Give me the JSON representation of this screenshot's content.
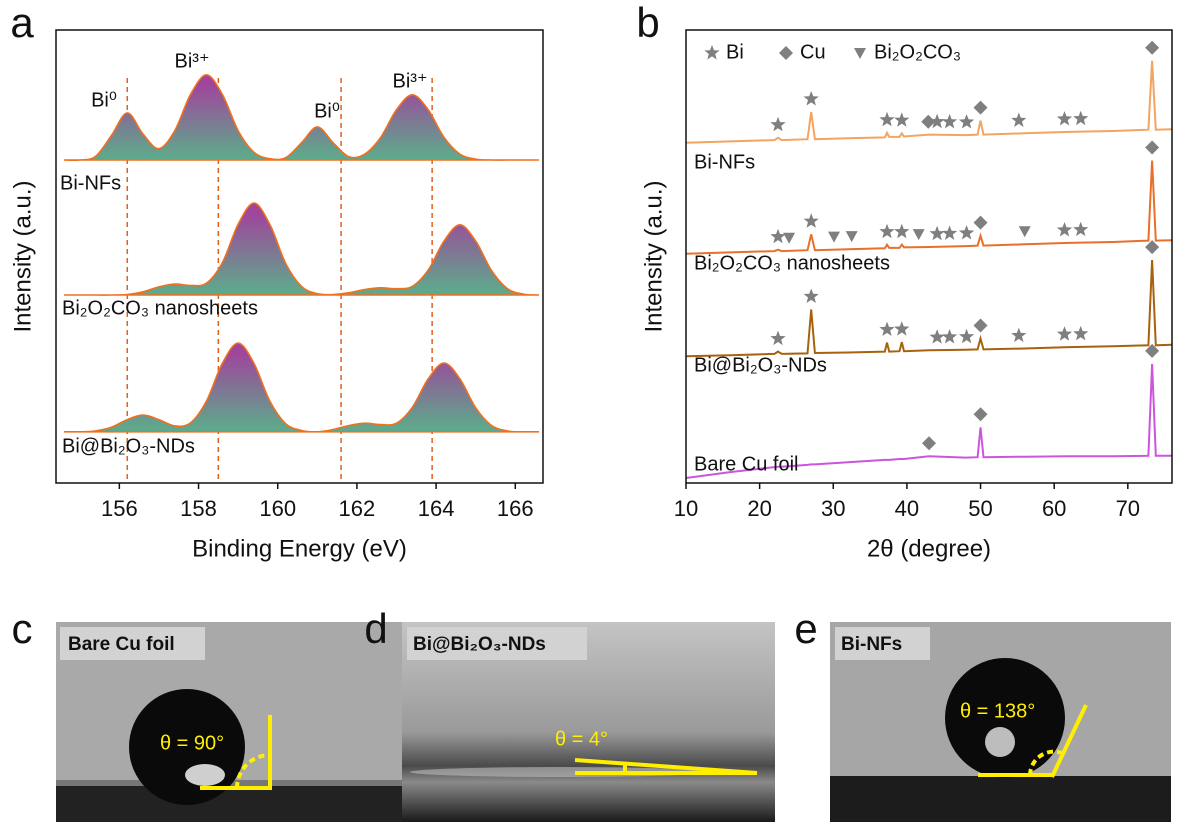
{
  "chart_data": [
    {
      "type": "area",
      "panel": "a",
      "x_label": "Binding Energy (eV)",
      "y_label": "Intensity (a.u.)",
      "xlim": [
        154.4,
        166.7
      ],
      "xticks": [
        156,
        158,
        160,
        162,
        164,
        166
      ],
      "ylim": [
        0,
        100
      ],
      "line_color": "#f0701e",
      "reference_line_color": "#e0601a",
      "reference_lines": [
        156.2,
        158.5,
        161.6,
        163.9
      ],
      "annotations": [
        "Bi⁰",
        "Bi³⁺",
        "Bi⁰",
        "Bi³⁺"
      ],
      "x": [
        154.6,
        155.0,
        155.4,
        155.8,
        156.2,
        156.6,
        157.0,
        157.4,
        157.8,
        158.2,
        158.6,
        159.0,
        159.4,
        159.8,
        160.2,
        160.6,
        161.0,
        161.4,
        161.8,
        162.2,
        162.6,
        163.0,
        163.4,
        163.8,
        164.2,
        164.6,
        165.0,
        165.4,
        165.8,
        166.2,
        166.6
      ],
      "series": [
        {
          "name": "Bi-NFs",
          "color": "#a0449c",
          "values": [
            71.3,
            71.3,
            72.1,
            76.7,
            81.7,
            77.0,
            73.8,
            77.8,
            85.8,
            90.1,
            85.8,
            77.8,
            73.0,
            71.6,
            71.8,
            75.1,
            78.6,
            75.1,
            72.0,
            72.6,
            76.3,
            82.4,
            85.7,
            82.4,
            76.3,
            72.6,
            71.5,
            71.3,
            71.3,
            71.3,
            71.3
          ]
        },
        {
          "name": "Bi₂O₂CO₃ nanosheets",
          "color": "#a0449c",
          "values": [
            41.5,
            41.5,
            41.5,
            41.5,
            41.6,
            42.2,
            43.3,
            43.9,
            43.6,
            44.1,
            48.6,
            57.1,
            61.8,
            57.1,
            48.5,
            43.4,
            41.8,
            41.6,
            42.0,
            42.7,
            43.1,
            42.9,
            43.4,
            47.0,
            53.4,
            57.0,
            53.4,
            46.9,
            42.9,
            41.7,
            41.5
          ]
        },
        {
          "name": "Bi@Bi₂O₃-NDs",
          "color": "#a0449c",
          "values": [
            11.3,
            11.3,
            11.5,
            12.3,
            14.0,
            15.0,
            14.0,
            12.6,
            13.3,
            18.1,
            26.4,
            30.9,
            26.4,
            18.1,
            13.1,
            11.6,
            11.3,
            11.8,
            12.7,
            13.2,
            12.9,
            13.2,
            16.7,
            23.0,
            26.5,
            23.0,
            16.6,
            12.7,
            11.5,
            11.3,
            11.3
          ]
        }
      ]
    },
    {
      "type": "line",
      "panel": "b",
      "x_label": "2θ (degree)",
      "y_label": "Intensity (a.u.)",
      "xlim": [
        10,
        76
      ],
      "xticks": [
        10,
        20,
        30,
        40,
        50,
        60,
        70
      ],
      "ylim": [
        0,
        100
      ],
      "marker_color": "#7f7f7f",
      "marker_legend": [
        {
          "name": "Bi",
          "symbol": "star"
        },
        {
          "name": "Cu",
          "symbol": "diamond"
        },
        {
          "name": "Bi₂O₂CO₃",
          "symbol": "triangle"
        }
      ],
      "x": [
        10,
        16,
        22,
        22.5,
        23,
        26.5,
        27.0,
        27.5,
        32,
        37.0,
        37.3,
        37.6,
        39.0,
        39.3,
        39.6,
        43.0,
        48.0,
        49.6,
        50.0,
        50.4,
        56,
        62,
        68,
        72.8,
        73.3,
        73.8,
        76
      ],
      "series": [
        {
          "name": "Bi-NFs",
          "color": "#f5a460",
          "values": [
            75.1,
            75.4,
            75.7,
            76.2,
            75.7,
            75.9,
            81.9,
            75.9,
            76.1,
            76.3,
            77.3,
            76.4,
            76.4,
            77.2,
            76.5,
            76.9,
            76.8,
            76.9,
            80.0,
            76.9,
            77.2,
            77.5,
            77.7,
            78.0,
            93.2,
            78.0,
            78.1
          ],
          "markers": {
            "star": [
              22.5,
              27.0,
              37.3,
              39.3,
              44.1,
              45.8,
              48.1,
              55.2,
              61.4,
              63.6
            ],
            "diamond": [
              42.9,
              50.0,
              73.3
            ]
          }
        },
        {
          "name": "Bi₂O₂CO₃ nanosheets",
          "color": "#e8702a",
          "values": [
            50.6,
            50.9,
            51.2,
            51.5,
            51.2,
            51.4,
            54.9,
            51.4,
            51.6,
            51.8,
            52.6,
            51.9,
            51.9,
            52.6,
            52.0,
            52.1,
            52.3,
            52.4,
            54.6,
            52.4,
            52.7,
            53.0,
            53.2,
            53.5,
            71.2,
            53.5,
            53.6
          ],
          "markers": {
            "star": [
              22.5,
              27.0,
              37.3,
              39.3,
              44.1,
              45.8,
              48.1,
              61.4,
              63.6
            ],
            "triangle": [
              24.0,
              30.1,
              32.5,
              41.6,
              56.0
            ],
            "diamond": [
              50.0,
              73.3
            ]
          }
        },
        {
          "name": "Bi@Bi₂O₃-NDs",
          "color": "#a8620e",
          "values": [
            28.0,
            28.2,
            28.5,
            29.0,
            28.5,
            28.6,
            38.3,
            28.7,
            28.8,
            29.0,
            31.0,
            29.0,
            29.1,
            31.1,
            29.1,
            29.3,
            29.4,
            29.5,
            31.9,
            29.5,
            29.7,
            30.0,
            30.2,
            30.4,
            49.2,
            30.4,
            30.5
          ],
          "markers": {
            "star": [
              22.5,
              27.0,
              37.3,
              39.3,
              44.1,
              45.8,
              48.1,
              55.2,
              61.4,
              63.6
            ],
            "diamond": [
              50.0,
              73.3
            ]
          }
        },
        {
          "name": "Bare Cu foil",
          "color": "#cc55dd",
          "values": [
            1.1,
            2.4,
            3.5,
            3.6,
            3.6,
            4.0,
            4.1,
            4.1,
            4.6,
            5.1,
            5.1,
            5.1,
            5.3,
            5.3,
            5.3,
            5.9,
            5.6,
            5.7,
            12.3,
            5.7,
            5.8,
            5.9,
            5.9,
            6.0,
            26.3,
            6.0,
            6.0
          ],
          "markers": {
            "diamond": [
              43.0,
              50.0,
              73.3
            ]
          }
        }
      ]
    }
  ],
  "photos": [
    {
      "panel": "c",
      "label": "Bare Cu foil",
      "angle": "θ = 90°"
    },
    {
      "panel": "d",
      "label": "Bi@Bi₂O₃-NDs",
      "angle": "θ = 4°"
    },
    {
      "panel": "e",
      "label": "Bi-NFs",
      "angle": "θ = 138°"
    }
  ]
}
